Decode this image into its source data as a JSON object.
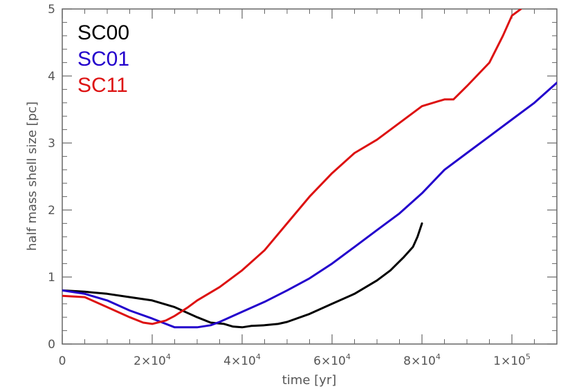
{
  "chart_data": {
    "type": "line",
    "title": "",
    "xlabel": "time [yr]",
    "ylabel": "half mass shell size [pc]",
    "xlim": [
      0,
      110000
    ],
    "ylim": [
      0,
      5
    ],
    "grid": false,
    "legend_position": "top-left",
    "x_ticks": [
      {
        "value": 0,
        "label": "0",
        "exp": ""
      },
      {
        "value": 20000,
        "label": "2×10",
        "exp": "4"
      },
      {
        "value": 40000,
        "label": "4×10",
        "exp": "4"
      },
      {
        "value": 60000,
        "label": "6×10",
        "exp": "4"
      },
      {
        "value": 80000,
        "label": "8×10",
        "exp": "4"
      },
      {
        "value": 100000,
        "label": "1×10",
        "exp": "5"
      }
    ],
    "y_ticks": [
      {
        "value": 0,
        "label": "0"
      },
      {
        "value": 1,
        "label": "1"
      },
      {
        "value": 2,
        "label": "2"
      },
      {
        "value": 3,
        "label": "3"
      },
      {
        "value": 4,
        "label": "4"
      },
      {
        "value": 5,
        "label": "5"
      }
    ],
    "series": [
      {
        "name": "SC00",
        "color": "#000000",
        "x": [
          0,
          5000,
          10000,
          15000,
          20000,
          25000,
          30000,
          33000,
          36000,
          38000,
          40000,
          42000,
          45000,
          48000,
          50000,
          55000,
          60000,
          65000,
          70000,
          73000,
          76000,
          78000,
          79000,
          80000
        ],
        "y": [
          0.8,
          0.78,
          0.75,
          0.7,
          0.65,
          0.55,
          0.4,
          0.32,
          0.3,
          0.26,
          0.25,
          0.27,
          0.28,
          0.3,
          0.33,
          0.45,
          0.6,
          0.75,
          0.95,
          1.1,
          1.3,
          1.45,
          1.6,
          1.8
        ]
      },
      {
        "name": "SC01",
        "color": "#2200cc",
        "x": [
          0,
          5000,
          10000,
          15000,
          20000,
          25000,
          30000,
          33000,
          35000,
          40000,
          45000,
          50000,
          55000,
          60000,
          65000,
          70000,
          75000,
          80000,
          85000,
          90000,
          95000,
          100000,
          105000,
          110000
        ],
        "y": [
          0.8,
          0.75,
          0.65,
          0.5,
          0.38,
          0.25,
          0.25,
          0.28,
          0.33,
          0.48,
          0.63,
          0.8,
          0.98,
          1.2,
          1.45,
          1.7,
          1.95,
          2.25,
          2.6,
          2.85,
          3.1,
          3.35,
          3.6,
          3.9
        ]
      },
      {
        "name": "SC11",
        "color": "#dd1111",
        "x": [
          0,
          5000,
          10000,
          15000,
          18000,
          20000,
          23000,
          25000,
          28000,
          30000,
          35000,
          40000,
          45000,
          50000,
          55000,
          60000,
          65000,
          70000,
          75000,
          80000,
          85000,
          87000,
          90000,
          95000,
          98000,
          100000,
          102000
        ],
        "y": [
          0.72,
          0.7,
          0.55,
          0.4,
          0.32,
          0.3,
          0.35,
          0.42,
          0.55,
          0.65,
          0.85,
          1.1,
          1.4,
          1.8,
          2.2,
          2.55,
          2.85,
          3.05,
          3.3,
          3.55,
          3.65,
          3.65,
          3.85,
          4.2,
          4.6,
          4.9,
          5.0
        ]
      }
    ]
  }
}
